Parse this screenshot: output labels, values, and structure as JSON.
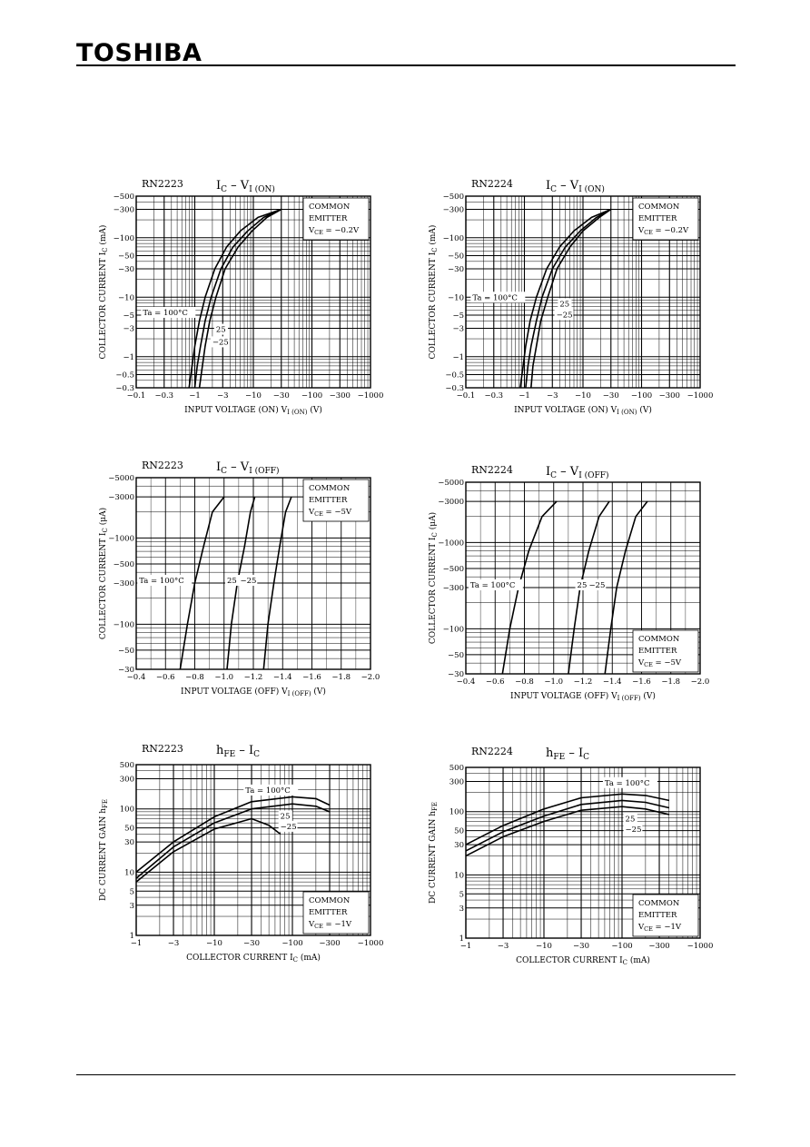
{
  "header": {
    "brand": "TOSHIBA"
  },
  "chart_data": [
    {
      "id": "c1",
      "type": "line",
      "part": "RN2223",
      "title_main": "I",
      "title_main_sub": "C",
      "title_sep": "–",
      "title_rhs": "V",
      "title_rhs_sub": "I (ON)",
      "xlabel": "INPUT VOLTAGE (ON)",
      "xlabel_sym": "V",
      "xlabel_sym_sub": "I (ON)",
      "xlabel_unit": "(V)",
      "ylabel": "COLLECTOR CURRENT",
      "ylabel_sym": "I",
      "ylabel_sym_sub": "C",
      "ylabel_unit": "(mA)",
      "x_scale": "log-abs",
      "y_scale": "log-abs",
      "xlim": [
        -0.1,
        -1000
      ],
      "ylim": [
        -0.3,
        -500
      ],
      "x_ticks": [
        -0.1,
        -0.3,
        -1,
        -3,
        -10,
        -30,
        -100,
        -300,
        -1000
      ],
      "x_tick_labels": [
        "−0.1",
        "−0.3",
        "−1",
        "−3",
        "−10",
        "−30",
        "−100",
        "−300",
        "−1000"
      ],
      "y_ticks": [
        -500,
        -300,
        -100,
        -50,
        -30,
        -10,
        -5,
        -3,
        -1,
        -0.5,
        -0.3
      ],
      "y_tick_labels": [
        "−500",
        "−300",
        "−100",
        "−50",
        "−30",
        "−10",
        "−5",
        "−3",
        "−1",
        "−0.5",
        "−0.3"
      ],
      "legend_box": {
        "lines": [
          "COMMON",
          "EMITTER"
        ],
        "cond_sym": "V",
        "cond_sub": "CE",
        "cond_val": "= −0.2V",
        "position": "top-right"
      },
      "series": [
        {
          "name": "Ta = 100°C",
          "x": [
            -0.8,
            -0.9,
            -1.0,
            -1.2,
            -1.5,
            -2.2,
            -3.5,
            -6,
            -12,
            -30
          ],
          "y": [
            -0.3,
            -0.7,
            -1.5,
            -4,
            -10,
            -30,
            -70,
            -130,
            -220,
            -300
          ]
        },
        {
          "name": "25",
          "x": [
            -1.0,
            -1.1,
            -1.25,
            -1.5,
            -1.9,
            -2.8,
            -4.5,
            -8,
            -15,
            -30
          ],
          "y": [
            -0.3,
            -0.7,
            -1.5,
            -4,
            -10,
            -30,
            -70,
            -130,
            -220,
            -300
          ]
        },
        {
          "name": "−25",
          "x": [
            -1.2,
            -1.35,
            -1.5,
            -1.8,
            -2.3,
            -3.3,
            -5.5,
            -9.5,
            -17,
            -30
          ],
          "y": [
            -0.3,
            -0.7,
            -1.5,
            -4,
            -10,
            -30,
            -70,
            -130,
            -220,
            -300
          ]
        }
      ],
      "annotations": [
        {
          "text": "Ta = 100°C",
          "x": -0.13,
          "y": -5
        },
        {
          "text": "25",
          "x": -2.3,
          "y": -2.6
        },
        {
          "text": "−25",
          "x": -2.0,
          "y": -1.6
        }
      ]
    },
    {
      "id": "c2",
      "type": "line",
      "part": "RN2224",
      "title_main": "I",
      "title_main_sub": "C",
      "title_sep": "–",
      "title_rhs": "V",
      "title_rhs_sub": "I (ON)",
      "xlabel": "INPUT VOLTAGE (ON)",
      "xlabel_sym": "V",
      "xlabel_sym_sub": "I (ON)",
      "xlabel_unit": "(V)",
      "ylabel": "COLLECTOR CURRENT",
      "ylabel_sym": "I",
      "ylabel_sym_sub": "C",
      "ylabel_unit": "(mA)",
      "x_scale": "log-abs",
      "y_scale": "log-abs",
      "xlim": [
        -0.1,
        -1000
      ],
      "ylim": [
        -0.3,
        -500
      ],
      "x_ticks": [
        -0.1,
        -0.3,
        -1,
        -3,
        -10,
        -30,
        -100,
        -300,
        -1000
      ],
      "x_tick_labels": [
        "−0.1",
        "−0.3",
        "−1",
        "−3",
        "−10",
        "−30",
        "−100",
        "−300",
        "−1000"
      ],
      "y_ticks": [
        -500,
        -300,
        -100,
        -50,
        -30,
        -10,
        -5,
        -3,
        -1,
        -0.5,
        -0.3
      ],
      "y_tick_labels": [
        "−500",
        "−300",
        "−100",
        "−50",
        "−30",
        "−10",
        "−5",
        "−3",
        "−1",
        "−0.5",
        "−0.3"
      ],
      "legend_box": {
        "lines": [
          "COMMON",
          "EMITTER"
        ],
        "cond_sym": "V",
        "cond_sub": "CE",
        "cond_val": "= −0.2V",
        "position": "top-right"
      },
      "series": [
        {
          "name": "Ta = 100°C",
          "x": [
            -0.85,
            -0.95,
            -1.05,
            -1.25,
            -1.6,
            -2.4,
            -4,
            -7,
            -14,
            -30
          ],
          "y": [
            -0.3,
            -0.7,
            -1.5,
            -4,
            -10,
            -30,
            -70,
            -130,
            -220,
            -300
          ]
        },
        {
          "name": "25",
          "x": [
            -1.05,
            -1.15,
            -1.3,
            -1.6,
            -2.0,
            -3.0,
            -5,
            -9,
            -17,
            -30
          ],
          "y": [
            -0.3,
            -0.7,
            -1.5,
            -4,
            -10,
            -30,
            -70,
            -130,
            -220,
            -300
          ]
        },
        {
          "name": "−25",
          "x": [
            -1.3,
            -1.4,
            -1.6,
            -1.9,
            -2.5,
            -3.6,
            -6,
            -10,
            -19,
            -30
          ],
          "y": [
            -0.3,
            -0.7,
            -1.5,
            -4,
            -10,
            -30,
            -70,
            -130,
            -220,
            -300
          ]
        }
      ],
      "annotations": [
        {
          "text": "Ta = 100°C",
          "x": -0.13,
          "y": -9
        },
        {
          "text": "25",
          "x": -4.0,
          "y": -7
        },
        {
          "text": "−25",
          "x": -3.5,
          "y": -4.6
        }
      ]
    },
    {
      "id": "c3",
      "type": "line",
      "part": "RN2223",
      "title_main": "I",
      "title_main_sub": "C",
      "title_sep": "–",
      "title_rhs": "V",
      "title_rhs_sub": "I (OFF)",
      "xlabel": "INPUT VOLTAGE (OFF)",
      "xlabel_sym": "V",
      "xlabel_sym_sub": "I (OFF)",
      "xlabel_unit": "(V)",
      "ylabel": "COLLECTOR CURRENT",
      "ylabel_sym": "I",
      "ylabel_sym_sub": "C",
      "ylabel_unit": "(μA)",
      "x_scale": "linear",
      "y_scale": "log-abs",
      "xlim": [
        -0.4,
        -2.0
      ],
      "ylim": [
        -30,
        -5000
      ],
      "x_ticks": [
        -0.4,
        -0.6,
        -0.8,
        -1.0,
        -1.2,
        -1.4,
        -1.6,
        -1.8,
        -2.0
      ],
      "x_tick_labels": [
        "−0.4",
        "−0.6",
        "−0.8",
        "−1.0",
        "−1.2",
        "−1.4",
        "−1.6",
        "−1.8",
        "−2.0"
      ],
      "y_ticks": [
        -5000,
        -3000,
        -1000,
        -500,
        -300,
        -100,
        -50,
        -30
      ],
      "y_tick_labels": [
        "−5000",
        "−3000",
        "−1000",
        "−500",
        "−300",
        "−100",
        "−50",
        "−30"
      ],
      "legend_box": {
        "lines": [
          "COMMON",
          "EMITTER"
        ],
        "cond_sym": "V",
        "cond_sub": "CE",
        "cond_val": "= −5V",
        "position": "top-right"
      },
      "series": [
        {
          "name": "Ta = 100°C",
          "x": [
            -0.7,
            -0.75,
            -0.8,
            -0.86,
            -0.92,
            -1.0
          ],
          "y": [
            -30,
            -100,
            -300,
            -800,
            -2000,
            -3000
          ]
        },
        {
          "name": "25",
          "x": [
            -1.02,
            -1.05,
            -1.09,
            -1.14,
            -1.18,
            -1.21
          ],
          "y": [
            -30,
            -100,
            -300,
            -800,
            -2000,
            -3000
          ]
        },
        {
          "name": "−25",
          "x": [
            -1.27,
            -1.3,
            -1.34,
            -1.38,
            -1.42,
            -1.46
          ],
          "y": [
            -30,
            -100,
            -300,
            -800,
            -2000,
            -3000
          ]
        }
      ],
      "annotations": [
        {
          "text": "Ta = 100°C",
          "x": -0.42,
          "y": -300
        },
        {
          "text": "25",
          "x": -1.02,
          "y": -300
        },
        {
          "text": "−25",
          "x": -1.11,
          "y": -300
        }
      ]
    },
    {
      "id": "c4",
      "type": "line",
      "part": "RN2224",
      "title_main": "I",
      "title_main_sub": "C",
      "title_sep": "–",
      "title_rhs": "V",
      "title_rhs_sub": "I (OFF)",
      "xlabel": "INPUT VOLTAGE (OFF)",
      "xlabel_sym": "V",
      "xlabel_sym_sub": "I (OFF)",
      "xlabel_unit": "(V)",
      "ylabel": "COLLECTOR CURRENT",
      "ylabel_sym": "I",
      "ylabel_sym_sub": "C",
      "ylabel_unit": "(μA)",
      "x_scale": "linear",
      "y_scale": "log-abs",
      "xlim": [
        -0.4,
        -2.0
      ],
      "ylim": [
        -30,
        -5000
      ],
      "x_ticks": [
        -0.4,
        -0.6,
        -0.8,
        -1.0,
        -1.2,
        -1.4,
        -1.6,
        -1.8,
        -2.0
      ],
      "x_tick_labels": [
        "−0.4",
        "−0.6",
        "−0.8",
        "−1.0",
        "−1.2",
        "−1.4",
        "−1.6",
        "−1.8",
        "−2.0"
      ],
      "y_ticks": [
        -5000,
        -3000,
        -1000,
        -500,
        -300,
        -100,
        -50,
        -30
      ],
      "y_tick_labels": [
        "−5000",
        "−3000",
        "−1000",
        "−500",
        "−300",
        "−100",
        "−50",
        "−30"
      ],
      "legend_box": {
        "lines": [
          "COMMON",
          "EMITTER"
        ],
        "cond_sym": "V",
        "cond_sub": "CE",
        "cond_val": "= −5V",
        "position": "bottom-right"
      },
      "series": [
        {
          "name": "Ta = 100°C",
          "x": [
            -0.65,
            -0.7,
            -0.76,
            -0.83,
            -0.92,
            -1.02
          ],
          "y": [
            -30,
            -100,
            -300,
            -800,
            -2000,
            -3000
          ]
        },
        {
          "name": "25",
          "x": [
            -1.1,
            -1.14,
            -1.18,
            -1.24,
            -1.31,
            -1.38
          ],
          "y": [
            -30,
            -100,
            -300,
            -800,
            -2000,
            -3000
          ]
        },
        {
          "name": "−25",
          "x": [
            -1.35,
            -1.39,
            -1.43,
            -1.49,
            -1.56,
            -1.64
          ],
          "y": [
            -30,
            -100,
            -300,
            -800,
            -2000,
            -3000
          ]
        }
      ],
      "annotations": [
        {
          "text": "Ta = 100°C",
          "x": -0.43,
          "y": -300
        },
        {
          "text": "25",
          "x": -1.16,
          "y": -300
        },
        {
          "text": "−25",
          "x": -1.24,
          "y": -300
        }
      ]
    },
    {
      "id": "c5",
      "type": "line",
      "part": "RN2223",
      "title_main": "h",
      "title_main_sub": "FE",
      "title_sep": "–",
      "title_rhs": "I",
      "title_rhs_sub": "C",
      "xlabel": "COLLECTOR CURRENT",
      "xlabel_sym": "I",
      "xlabel_sym_sub": "C",
      "xlabel_unit": "(mA)",
      "ylabel": "DC CURRENT GAIN",
      "ylabel_sym": "h",
      "ylabel_sym_sub": "FE",
      "ylabel_unit": "",
      "x_scale": "log-abs",
      "y_scale": "log",
      "xlim": [
        -1,
        -1000
      ],
      "ylim": [
        1,
        500
      ],
      "x_ticks": [
        -1,
        -3,
        -10,
        -30,
        -100,
        -300,
        -1000
      ],
      "x_tick_labels": [
        "−1",
        "−3",
        "−10",
        "−30",
        "−100",
        "−300",
        "−1000"
      ],
      "y_ticks": [
        500,
        300,
        100,
        50,
        30,
        10,
        5,
        3,
        1
      ],
      "y_tick_labels": [
        "500",
        "300",
        "100",
        "50",
        "30",
        "10",
        "5",
        "3",
        "1"
      ],
      "legend_box": {
        "lines": [
          "COMMON",
          "EMITTER"
        ],
        "cond_sym": "V",
        "cond_sub": "CE",
        "cond_val": "= −1V",
        "position": "bottom-right"
      },
      "series": [
        {
          "name": "Ta = 100°C",
          "x": [
            -1,
            -3,
            -10,
            -30,
            -100,
            -200,
            -300
          ],
          "y": [
            10,
            30,
            75,
            130,
            155,
            145,
            115
          ]
        },
        {
          "name": "25",
          "x": [
            -1,
            -3,
            -10,
            -30,
            -100,
            -200,
            -300
          ],
          "y": [
            8,
            25,
            60,
            100,
            120,
            110,
            90
          ]
        },
        {
          "name": "−25",
          "x": [
            -1,
            -3,
            -10,
            -30,
            -50,
            -70
          ],
          "y": [
            7,
            21,
            48,
            70,
            55,
            40
          ]
        }
      ],
      "annotations": [
        {
          "text": "Ta = 100°C",
          "x": -25,
          "y": 180
        },
        {
          "text": "25",
          "x": -70,
          "y": 70
        },
        {
          "text": "−25",
          "x": -70,
          "y": 48
        }
      ]
    },
    {
      "id": "c6",
      "type": "line",
      "part": "RN2224",
      "title_main": "h",
      "title_main_sub": "FE",
      "title_sep": "–",
      "title_rhs": "I",
      "title_rhs_sub": "C",
      "xlabel": "COLLECTOR CURRENT",
      "xlabel_sym": "I",
      "xlabel_sym_sub": "C",
      "xlabel_unit": "(mA)",
      "ylabel": "DC CURRENT GAIN",
      "ylabel_sym": "h",
      "ylabel_sym_sub": "FE",
      "ylabel_unit": "",
      "x_scale": "log-abs",
      "y_scale": "log",
      "xlim": [
        -1,
        -1000
      ],
      "ylim": [
        1,
        500
      ],
      "x_ticks": [
        -1,
        -3,
        -10,
        -30,
        -100,
        -300,
        -1000
      ],
      "x_tick_labels": [
        "−1",
        "−3",
        "−10",
        "−30",
        "−100",
        "−300",
        "−1000"
      ],
      "y_ticks": [
        500,
        300,
        100,
        50,
        30,
        10,
        5,
        3,
        1
      ],
      "y_tick_labels": [
        "500",
        "300",
        "100",
        "50",
        "30",
        "10",
        "5",
        "3",
        "1"
      ],
      "legend_box": {
        "lines": [
          "COMMON",
          "EMITTER"
        ],
        "cond_sym": "V",
        "cond_sub": "CE",
        "cond_val": "= −1V",
        "position": "bottom-right"
      },
      "series": [
        {
          "name": "Ta = 100°C",
          "x": [
            -1,
            -3,
            -10,
            -30,
            -100,
            -200,
            -400
          ],
          "y": [
            30,
            60,
            110,
            165,
            190,
            180,
            150
          ]
        },
        {
          "name": "25",
          "x": [
            -1,
            -3,
            -10,
            -30,
            -100,
            -200,
            -400
          ],
          "y": [
            24,
            48,
            85,
            130,
            150,
            140,
            115
          ]
        },
        {
          "name": "−25",
          "x": [
            -1,
            -3,
            -10,
            -30,
            -100,
            -200,
            -400
          ],
          "y": [
            20,
            40,
            70,
            105,
            120,
            110,
            90
          ]
        }
      ],
      "annotations": [
        {
          "text": "Ta = 100°C",
          "x": -60,
          "y": 260
        },
        {
          "text": "25",
          "x": -110,
          "y": 70
        },
        {
          "text": "−25",
          "x": -110,
          "y": 48
        }
      ]
    }
  ]
}
